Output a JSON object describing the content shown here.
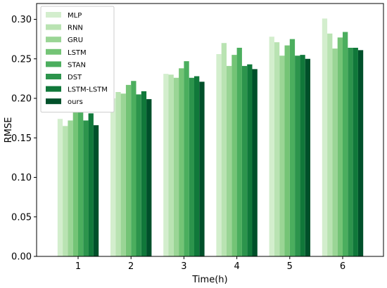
{
  "chart_data": {
    "type": "bar",
    "title": "",
    "xlabel": "Time(h)",
    "ylabel": "RMSE",
    "categories": [
      "1",
      "2",
      "3",
      "4",
      "5",
      "6"
    ],
    "ylim": [
      0,
      0.32
    ],
    "yticks": [
      "0.00",
      "0.05",
      "0.10",
      "0.15",
      "0.20",
      "0.25",
      "0.30"
    ],
    "grid": false,
    "legend_position": "top-left",
    "series": [
      {
        "name": "MLP",
        "color": "#d3eecd",
        "values": [
          0.174,
          0.2,
          0.231,
          0.256,
          0.278,
          0.301
        ]
      },
      {
        "name": "RNN",
        "color": "#b9e3b2",
        "values": [
          0.165,
          0.208,
          0.23,
          0.27,
          0.271,
          0.282
        ]
      },
      {
        "name": "GRU",
        "color": "#9ad595",
        "values": [
          0.172,
          0.206,
          0.226,
          0.241,
          0.254,
          0.263
        ]
      },
      {
        "name": "LSTM",
        "color": "#74c476",
        "values": [
          0.184,
          0.217,
          0.238,
          0.255,
          0.267,
          0.277
        ]
      },
      {
        "name": "STAN",
        "color": "#4bae5e",
        "values": [
          0.188,
          0.222,
          0.247,
          0.264,
          0.275,
          0.284
        ]
      },
      {
        "name": "DST",
        "color": "#2c944c",
        "values": [
          0.172,
          0.205,
          0.226,
          0.241,
          0.254,
          0.264
        ]
      },
      {
        "name": "LSTM-LSTM",
        "color": "#10783a",
        "values": [
          0.181,
          0.209,
          0.228,
          0.243,
          0.255,
          0.264
        ]
      },
      {
        "name": "ours",
        "color": "#00502a",
        "values": [
          0.166,
          0.199,
          0.221,
          0.237,
          0.25,
          0.261
        ]
      }
    ]
  }
}
